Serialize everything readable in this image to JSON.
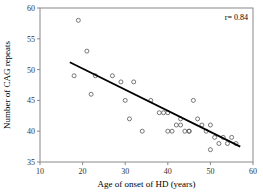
{
  "chart_data": {
    "type": "scatter",
    "xlabel": "Age of onset of HD (years)",
    "ylabel": "Number of CAG repeats",
    "annotation": "r= 0.84",
    "series": [
      {
        "type": "scatter",
        "marker": "open-circle",
        "color": "#555555",
        "x": [
          18,
          19,
          21,
          22,
          23,
          27,
          29,
          30,
          31,
          32,
          34,
          36,
          38,
          39,
          40,
          40,
          41,
          42,
          43,
          43,
          44,
          45,
          45,
          46,
          47,
          48,
          49,
          50,
          50,
          51,
          52,
          53,
          54,
          55,
          56
        ],
        "values": [
          49,
          58,
          53,
          46,
          49,
          49,
          48,
          45,
          42,
          48,
          40,
          45,
          43,
          43,
          40,
          43,
          40,
          41,
          41,
          42,
          40,
          40,
          40,
          45,
          42,
          41,
          40,
          41,
          37,
          39,
          38,
          39,
          38,
          39,
          38
        ]
      },
      {
        "type": "line",
        "color": "black",
        "line_style": "solid",
        "x": [
          17,
          57
        ],
        "values": [
          51.2,
          37.5
        ]
      }
    ],
    "xlim": [
      10,
      60
    ],
    "ylim": [
      35,
      60
    ],
    "xticks": [
      10,
      20,
      30,
      40,
      50,
      60
    ],
    "yticks": [
      35,
      40,
      45,
      50,
      55,
      60
    ],
    "grid": false
  }
}
